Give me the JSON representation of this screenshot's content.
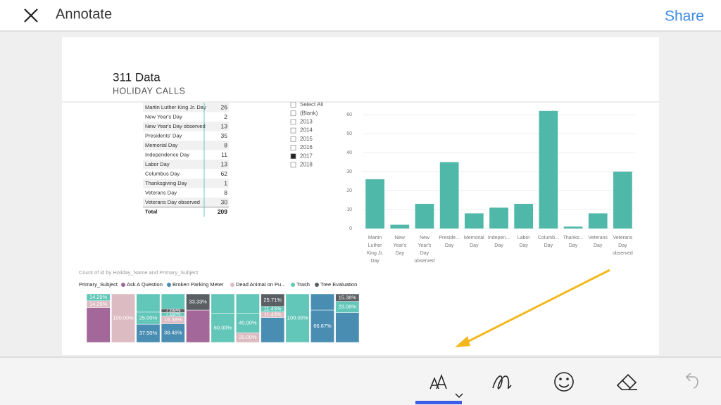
{
  "header": {
    "title": "Annotate",
    "action": "Share"
  },
  "report": {
    "title": "311 Data",
    "subtitle": "HOLIDAY CALLS"
  },
  "table": {
    "rows": [
      [
        "Martin Luther King Jr. Day",
        26
      ],
      [
        "New Year's Day",
        2
      ],
      [
        "New Year's Day observed",
        13
      ],
      [
        "Presidents' Day",
        35
      ],
      [
        "Memorial Day",
        8
      ],
      [
        "Independence Day",
        11
      ],
      [
        "Labor Day",
        13
      ],
      [
        "Columbus Day",
        62
      ],
      [
        "Thanksgiving Day",
        1
      ],
      [
        "Veterans Day",
        8
      ],
      [
        "Veterans Day observed",
        30
      ]
    ],
    "total": [
      "Total",
      209
    ]
  },
  "slicer": {
    "items": [
      "Select All",
      "(Blank)",
      "2013",
      "2014",
      "2015",
      "2016",
      "2017",
      "2018"
    ],
    "checked": [
      "2017"
    ]
  },
  "chart_data": [
    {
      "type": "bar",
      "color": "#4fb8a8",
      "categories": [
        "Martin Luther King Jr. Day",
        "New Year's Day",
        "New Year's Day observed",
        "Preside... Day",
        "Memorial Day",
        "Indepen... Day",
        "Labor Day",
        "Columb... Day",
        "Thanks... Day",
        "Veterans Day",
        "Veterans Day observed"
      ],
      "values": [
        26,
        2,
        13,
        35,
        8,
        11,
        13,
        62,
        1,
        8,
        30
      ],
      "ylim": [
        0,
        66
      ],
      "yticks": [
        0,
        10,
        20,
        30,
        40,
        50,
        60
      ],
      "grid": true
    },
    {
      "type": "stacked100",
      "title": "Count of id by Holiday_Name and Primary_Subject",
      "legend_title": "Primary_Subject",
      "series": [
        {
          "name": "Ask A Question",
          "color": "#a3679a"
        },
        {
          "name": "Broken Parking Meter",
          "color": "#4a8db3"
        },
        {
          "name": "Dead Animal on Pu...",
          "color": "#dcbcc2"
        },
        {
          "name": "Trash",
          "color": "#62c6b8"
        },
        {
          "name": "Tree Evaluation",
          "color": "#5a5f63"
        }
      ],
      "columns": [
        {
          "segments": [
            {
              "series": 0,
              "value": 71.42
            },
            {
              "series": 2,
              "value": 14.29,
              "label": "14.29%"
            },
            {
              "series": 3,
              "value": 14.29,
              "label": "14.29%"
            }
          ]
        },
        {
          "segments": [
            {
              "series": 2,
              "value": 100,
              "label": "100.00%"
            }
          ]
        },
        {
          "segments": [
            {
              "series": 1,
              "value": 37.5,
              "label": "37.50%"
            },
            {
              "series": 3,
              "value": 25,
              "label": "25.00%"
            },
            {
              "series": 3,
              "value": 37.5
            }
          ]
        },
        {
          "segments": [
            {
              "series": 1,
              "value": 38.46,
              "label": "38.46%"
            },
            {
              "series": 2,
              "value": 15.38,
              "label": "15.38%"
            },
            {
              "series": 3,
              "value": 7.69,
              "label": "7.69%"
            },
            {
              "series": 4,
              "value": 7.69,
              "label": "7.69%"
            },
            {
              "series": 3,
              "value": 30.78
            }
          ]
        },
        {
          "segments": [
            {
              "series": 0,
              "value": 66.67
            },
            {
              "series": 4,
              "value": 33.33,
              "label": "33.33%"
            }
          ]
        },
        {
          "segments": [
            {
              "series": 3,
              "value": 60,
              "label": "60.00%"
            },
            {
              "series": 3,
              "value": 40
            }
          ]
        },
        {
          "segments": [
            {
              "series": 2,
              "value": 20,
              "label": "20.00%"
            },
            {
              "series": 3,
              "value": 40,
              "label": "40.00%"
            },
            {
              "series": 3,
              "value": 40
            }
          ]
        },
        {
          "segments": [
            {
              "series": 1,
              "value": 51.43
            },
            {
              "series": 2,
              "value": 11.43,
              "label": "11.43%"
            },
            {
              "series": 3,
              "value": 11.43,
              "label": "11.43%"
            },
            {
              "series": 4,
              "value": 25.71,
              "label": "25.71%"
            }
          ]
        },
        {
          "segments": [
            {
              "series": 3,
              "value": 100,
              "label": "100.00%"
            }
          ]
        },
        {
          "segments": [
            {
              "series": 1,
              "value": 66.67,
              "label": "66.67%"
            },
            {
              "series": 1,
              "value": 33.33
            }
          ]
        },
        {
          "segments": [
            {
              "series": 1,
              "value": 61.54
            },
            {
              "series": 3,
              "value": 23.08,
              "label": "23.08%"
            },
            {
              "series": 4,
              "value": 15.38,
              "label": "15.38%"
            }
          ]
        }
      ]
    }
  ]
}
